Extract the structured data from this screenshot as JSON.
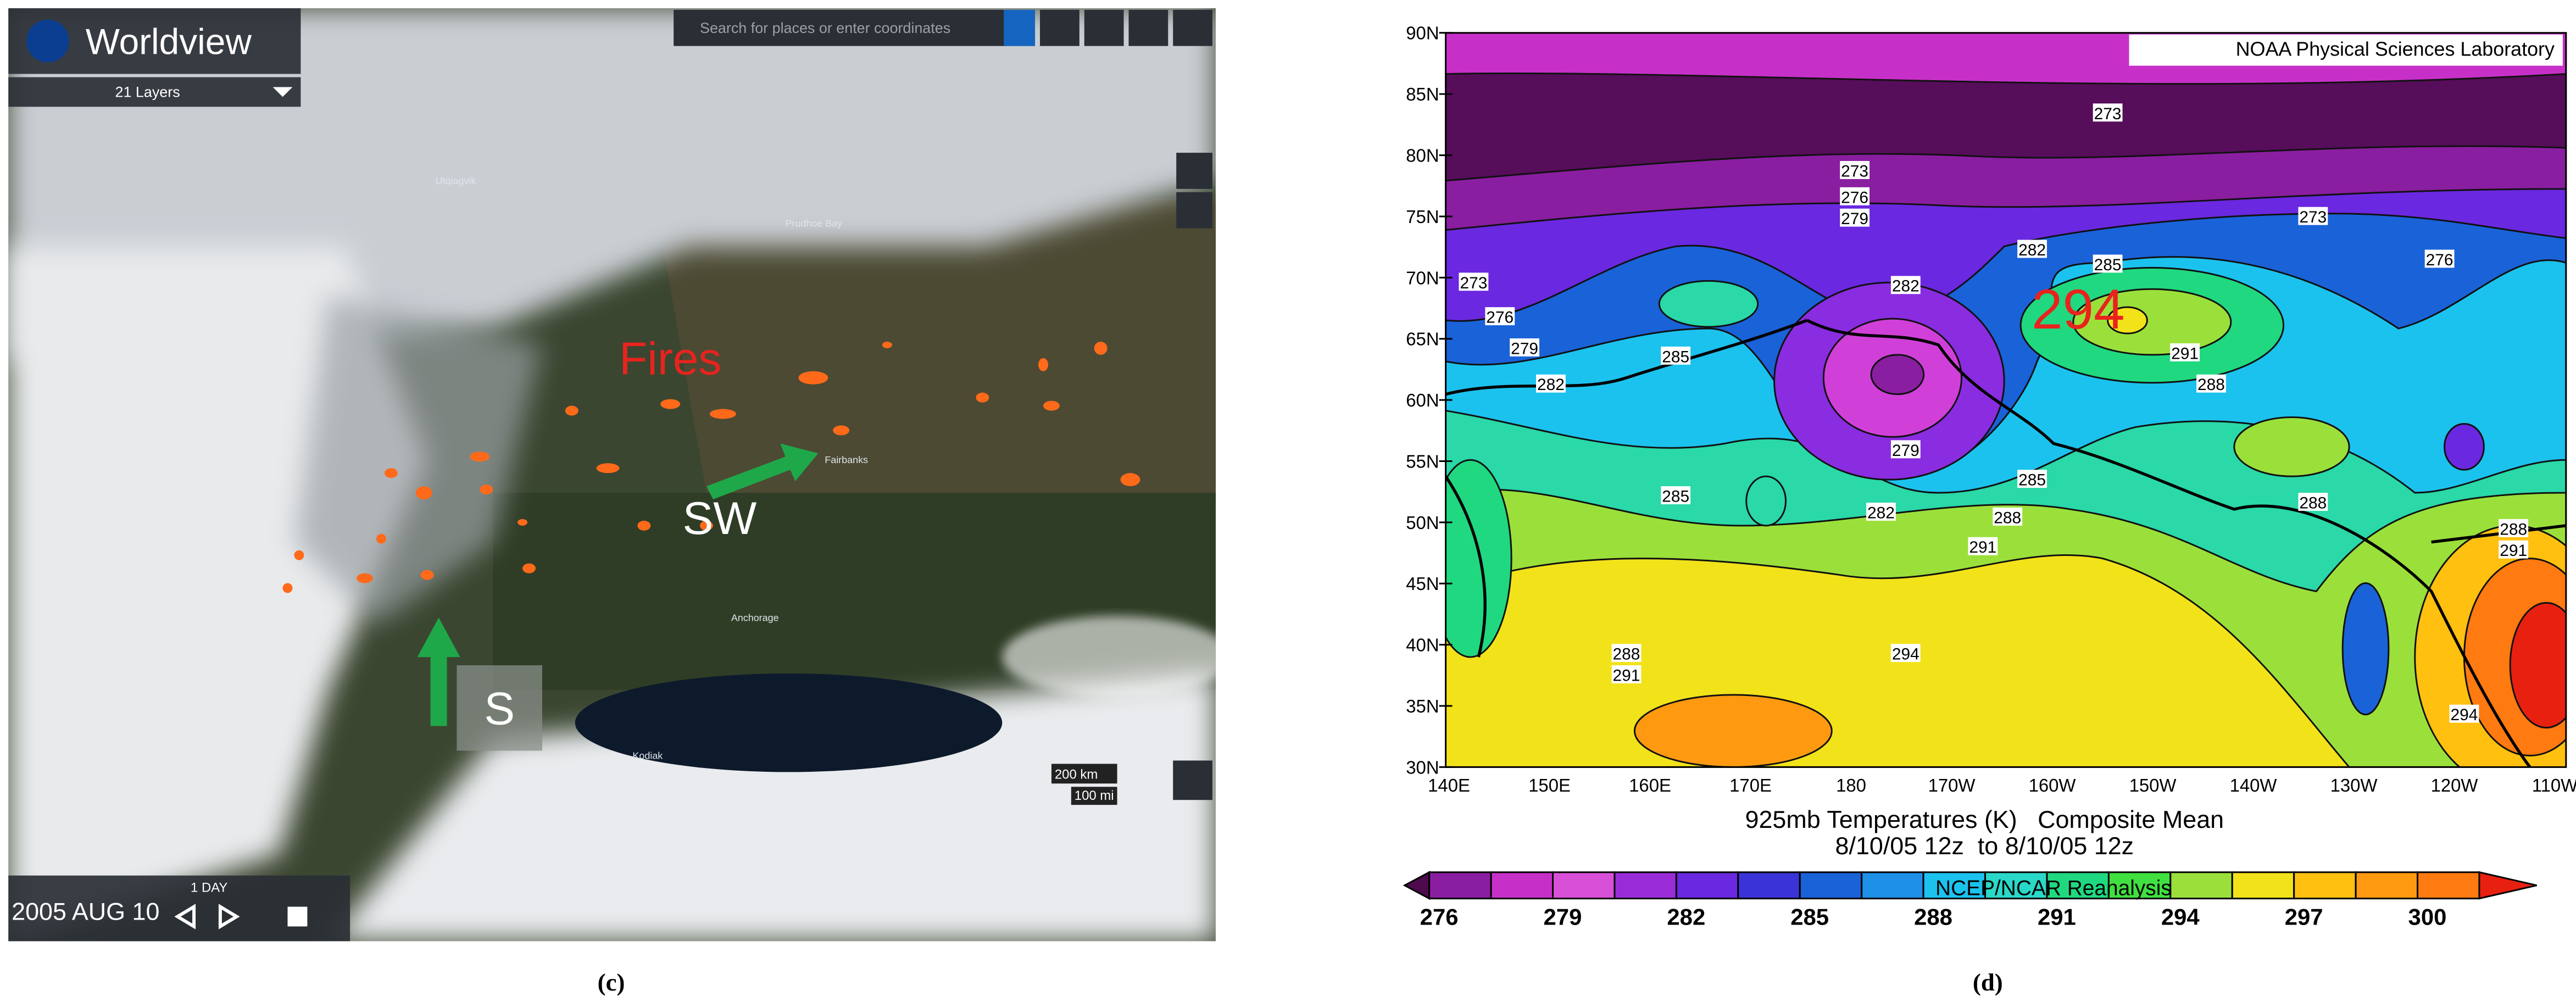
{
  "panels": [
    {
      "caption": "(c)",
      "app_title": "Worldview",
      "layers": "21 Layers",
      "search_placeholder": "Search for places or enter coordinates",
      "annotations": [
        "Fires",
        "SW",
        "S"
      ],
      "places": [
        "Utqiagvik",
        "Prudhoe Bay",
        "Fairbanks",
        "Anchorage",
        "Kodiak"
      ],
      "scale": [
        "200 km",
        "100 mi"
      ],
      "date": "2005 AUG 10",
      "interval": "1 DAY"
    },
    {
      "caption": "(d)",
      "credit": "NOAA Physical Sciences Laboratory",
      "lat_labels": [
        "90N",
        "85N",
        "80N",
        "75N",
        "70N",
        "65N",
        "60N",
        "55N",
        "50N",
        "45N",
        "40N",
        "35N",
        "30N"
      ],
      "lon_labels": [
        "140E",
        "150E",
        "160E",
        "170E",
        "180",
        "170W",
        "160W",
        "150W",
        "140W",
        "130W",
        "120W",
        "110W"
      ],
      "contour_labels": [
        273,
        273,
        276,
        279,
        273,
        282,
        285,
        276,
        273,
        282,
        276,
        279,
        285,
        291,
        282,
        288,
        279,
        285,
        285,
        288,
        282,
        288,
        291,
        288,
        291,
        288,
        291,
        294,
        294
      ],
      "highlight": "294",
      "title": "925mb Temperatures (K)   Composite Mean",
      "subtitle": "8/10/05 12z  to 8/10/05 12z",
      "source": "NCEP/NCAR Reanalysis",
      "colorbar": [
        276,
        279,
        282,
        285,
        288,
        291,
        294,
        297,
        300
      ]
    }
  ]
}
